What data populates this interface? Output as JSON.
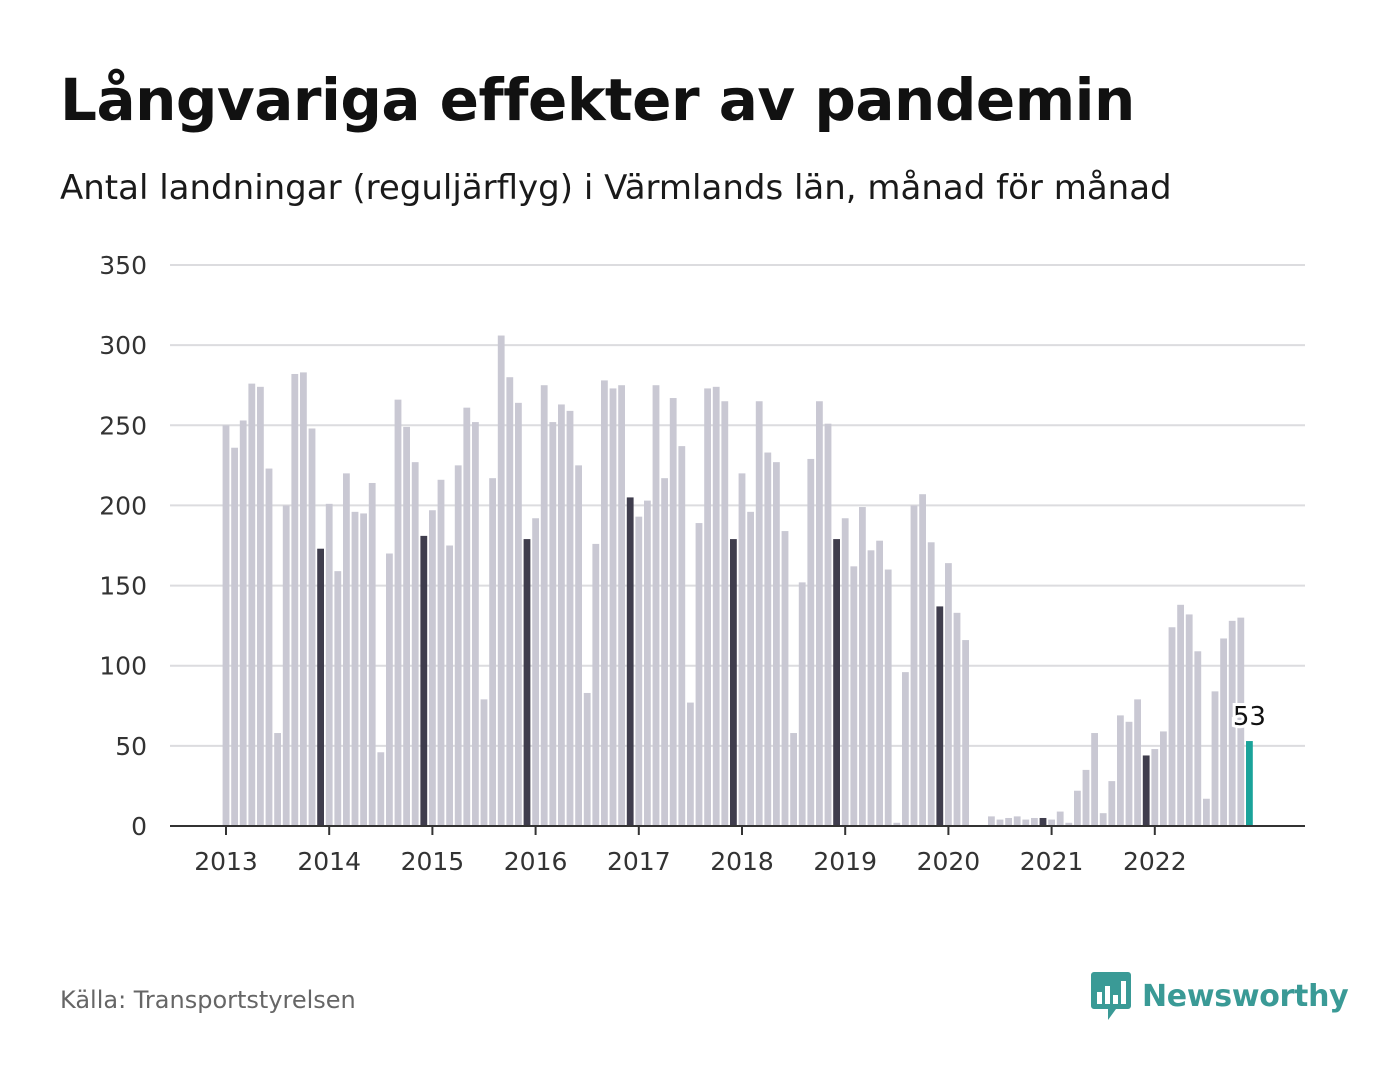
{
  "title": "Långvariga effekter av pandemin",
  "subtitle": "Antal landningar (reguljärflyg) i Värmlands län, månad för månad",
  "source": "Källa: Transportstyrelsen",
  "brand": {
    "name": "Newsworthy",
    "icon": "newsworthy-chart-icon",
    "color": "#3a9a96"
  },
  "chart_data": {
    "type": "bar",
    "ylim": [
      0,
      350
    ],
    "yticks": [
      0,
      50,
      100,
      150,
      200,
      250,
      300,
      350
    ],
    "grid": true,
    "year_labels": [
      "2013",
      "2014",
      "2015",
      "2016",
      "2017",
      "2018",
      "2019",
      "2020",
      "2021",
      "2022"
    ],
    "colors": {
      "default": "#c9c8d3",
      "december": "#3f3d4d",
      "latest": "#1aa39a"
    },
    "highlight_label": "53",
    "values": [
      250,
      236,
      253,
      276,
      274,
      223,
      58,
      200,
      282,
      283,
      248,
      173,
      201,
      159,
      220,
      196,
      195,
      214,
      46,
      170,
      266,
      249,
      227,
      181,
      197,
      216,
      175,
      225,
      261,
      252,
      79,
      217,
      306,
      280,
      264,
      179,
      192,
      275,
      252,
      263,
      259,
      225,
      83,
      176,
      278,
      273,
      275,
      205,
      193,
      203,
      275,
      217,
      267,
      237,
      77,
      189,
      273,
      274,
      265,
      179,
      220,
      196,
      265,
      233,
      227,
      184,
      58,
      152,
      229,
      265,
      251,
      179,
      192,
      162,
      199,
      172,
      178,
      160,
      2,
      96,
      200,
      207,
      177,
      137,
      164,
      133,
      116,
      0,
      0,
      6,
      4,
      5,
      6,
      4,
      5,
      5,
      4,
      9,
      2,
      22,
      35,
      58,
      8,
      28,
      69,
      65,
      79,
      44,
      48,
      59,
      124,
      138,
      132,
      109,
      17,
      84,
      117,
      128,
      130,
      53
    ]
  }
}
